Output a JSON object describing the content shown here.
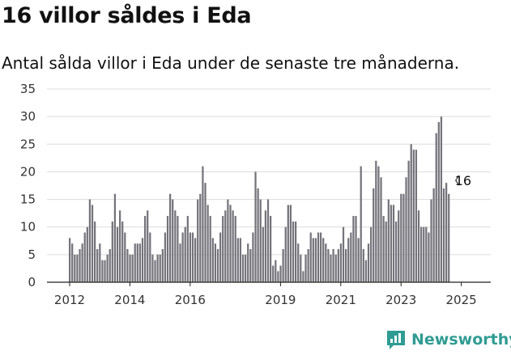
{
  "title": "16 villor såldes i Eda",
  "subtitle": "Antal sålda villor i Eda under de senaste tre månaderna.",
  "brand": "Newsworthy",
  "colors": {
    "bar": "#74737a",
    "highlight": "#2b9a93",
    "grid": "#dcdcdc",
    "brand": "#2f9c93"
  },
  "icons": {
    "brand": "bar-chart-speech-bubble-icon"
  },
  "chart_data": {
    "type": "bar",
    "title": "",
    "xlabel": "",
    "ylabel": "",
    "ylim": [
      0,
      35
    ],
    "yticks": [
      "0",
      "5",
      "10",
      "15",
      "20",
      "25",
      "30",
      "35"
    ],
    "xlim": [
      2012,
      2025.3
    ],
    "xticks": [
      {
        "label": "2012",
        "value": 2012
      },
      {
        "label": "2014",
        "value": 2014
      },
      {
        "label": "2016",
        "value": 2016
      },
      {
        "label": "2019",
        "value": 2019
      },
      {
        "label": "2021",
        "value": 2021
      },
      {
        "label": "2023",
        "value": 2023
      },
      {
        "label": "2025",
        "value": 2025
      }
    ],
    "start": [
      2012,
      1
    ],
    "interval": "month",
    "grid": true,
    "values": [
      8,
      7,
      5,
      5,
      6,
      7,
      9,
      10,
      15,
      14,
      11,
      6,
      7,
      4,
      4,
      5,
      6,
      11,
      16,
      10,
      13,
      11,
      9,
      6,
      5,
      5,
      7,
      7,
      7,
      8,
      12,
      13,
      9,
      5,
      4,
      5,
      5,
      6,
      9,
      12,
      16,
      15,
      13,
      12,
      7,
      9,
      10,
      12,
      9,
      9,
      8,
      15,
      16,
      21,
      18,
      14,
      12,
      8,
      7,
      6,
      9,
      12,
      13,
      15,
      14,
      13,
      12,
      8,
      8,
      5,
      5,
      7,
      6,
      9,
      20,
      17,
      15,
      10,
      13,
      15,
      12,
      3,
      4,
      2,
      3,
      6,
      10,
      14,
      14,
      11,
      11,
      7,
      5,
      2,
      5,
      6,
      9,
      8,
      8,
      9,
      9,
      8,
      7,
      6,
      5,
      6,
      5,
      6,
      7,
      10,
      6,
      8,
      9,
      12,
      12,
      8,
      21,
      6,
      4,
      7,
      10,
      17,
      22,
      21,
      19,
      12,
      11,
      15,
      14,
      14,
      11,
      13,
      16,
      16,
      19,
      22,
      25,
      24,
      24,
      13,
      10,
      10,
      10,
      9,
      15,
      17,
      27,
      29,
      30,
      17,
      18,
      16
    ],
    "highlight_index": 157,
    "annotation": {
      "label": "16",
      "value": 16
    }
  }
}
